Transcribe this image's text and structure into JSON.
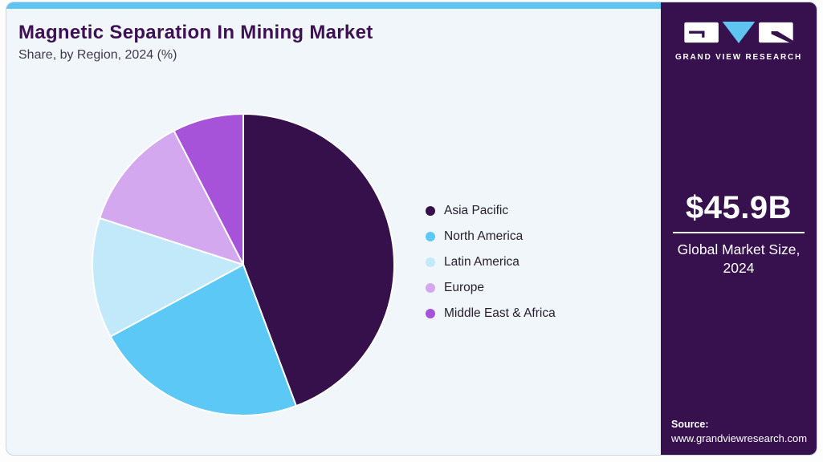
{
  "header": {
    "title": "Magnetic Separation In Mining Market",
    "subtitle": "Share, by Region, 2024 (%)"
  },
  "chart_data": {
    "type": "pie",
    "title": "Magnetic Separation In Mining Market Share, by Region, 2024 (%)",
    "unit": "%",
    "start_angle_deg": 0,
    "direction": "clockwise",
    "legend_position": "right",
    "data_labels_shown": false,
    "segments": [
      {
        "label": "Asia Pacific",
        "value": 44.3,
        "color": "#36104a"
      },
      {
        "label": "North America",
        "value": 22.8,
        "color": "#5bc8f5"
      },
      {
        "label": "Latin America",
        "value": 12.9,
        "color": "#c2e9f9"
      },
      {
        "label": "Europe",
        "value": 12.4,
        "color": "#d4a8ef"
      },
      {
        "label": "Middle East & Africa",
        "value": 7.6,
        "color": "#a653d9"
      }
    ]
  },
  "sidebar": {
    "logo_text": "GRAND VIEW RESEARCH",
    "market_size_value": "$45.9B",
    "market_size_label": "Global Market Size, 2024",
    "source_label": "Source:",
    "source_url": "www.grandviewresearch.com"
  },
  "colors": {
    "accent_blue": "#5ec4f0",
    "brand_purple": "#36114e",
    "card_background": "#f0f6fa",
    "title_text": "#3e1054",
    "slice_stroke": "#ffffff"
  }
}
